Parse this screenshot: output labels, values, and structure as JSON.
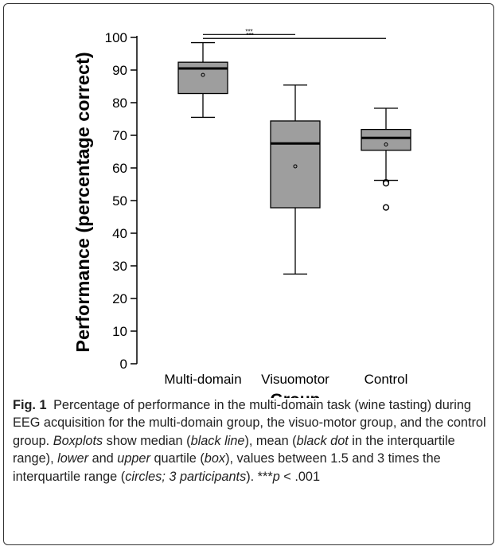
{
  "chart_data": {
    "type": "boxplot",
    "ylabel": "Performance (percentage correct)",
    "xlabel": "Group",
    "ylim": [
      0,
      100
    ],
    "yticks": [
      0,
      10,
      20,
      30,
      40,
      50,
      60,
      70,
      80,
      90,
      100
    ],
    "box_color": "#9e9e9e",
    "groups": [
      {
        "name": "Multi-domain",
        "min": 75.5,
        "q1": 82.8,
        "median": 90.5,
        "q3": 92.4,
        "max": 98.4,
        "mean": 88.5,
        "outliers": []
      },
      {
        "name": "Visuomotor",
        "min": 27.5,
        "q1": 47.8,
        "median": 67.5,
        "q3": 74.4,
        "max": 85.4,
        "mean": 60.5,
        "outliers": []
      },
      {
        "name": "Control",
        "min": 56.2,
        "q1": 65.4,
        "median": 69.2,
        "q3": 71.8,
        "max": 78.3,
        "mean": 67.2,
        "outliers": [
          55.6,
          55.3,
          47.9
        ]
      }
    ],
    "significance": [
      {
        "from": "Multi-domain",
        "to": "Visuomotor",
        "label": "***",
        "y": 100.9
      },
      {
        "from": "Multi-domain",
        "to": "Control",
        "label": "***",
        "y": 99.7
      }
    ]
  },
  "caption": {
    "label": "Fig. 1",
    "parts": [
      {
        "t": "Percentage of performance in the multi-domain task (wine tasting) during EEG acquisition for the multi-domain group, the visuo-motor group, and the control group. ",
        "i": false
      },
      {
        "t": "Boxplots",
        "i": true
      },
      {
        "t": " show median (",
        "i": false
      },
      {
        "t": "black line",
        "i": true
      },
      {
        "t": "), mean (",
        "i": false
      },
      {
        "t": "black dot",
        "i": true
      },
      {
        "t": " in the interquartile range), ",
        "i": false
      },
      {
        "t": "lower",
        "i": true
      },
      {
        "t": " and ",
        "i": false
      },
      {
        "t": "upper",
        "i": true
      },
      {
        "t": " quartile (",
        "i": false
      },
      {
        "t": "box",
        "i": true
      },
      {
        "t": "), values between 1.5 and 3 times the interquartile range (",
        "i": false
      },
      {
        "t": "circles; 3 participants",
        "i": true
      },
      {
        "t": "). ***",
        "i": false
      },
      {
        "t": "p",
        "i": true
      },
      {
        "t": " < .001",
        "i": false
      }
    ]
  }
}
